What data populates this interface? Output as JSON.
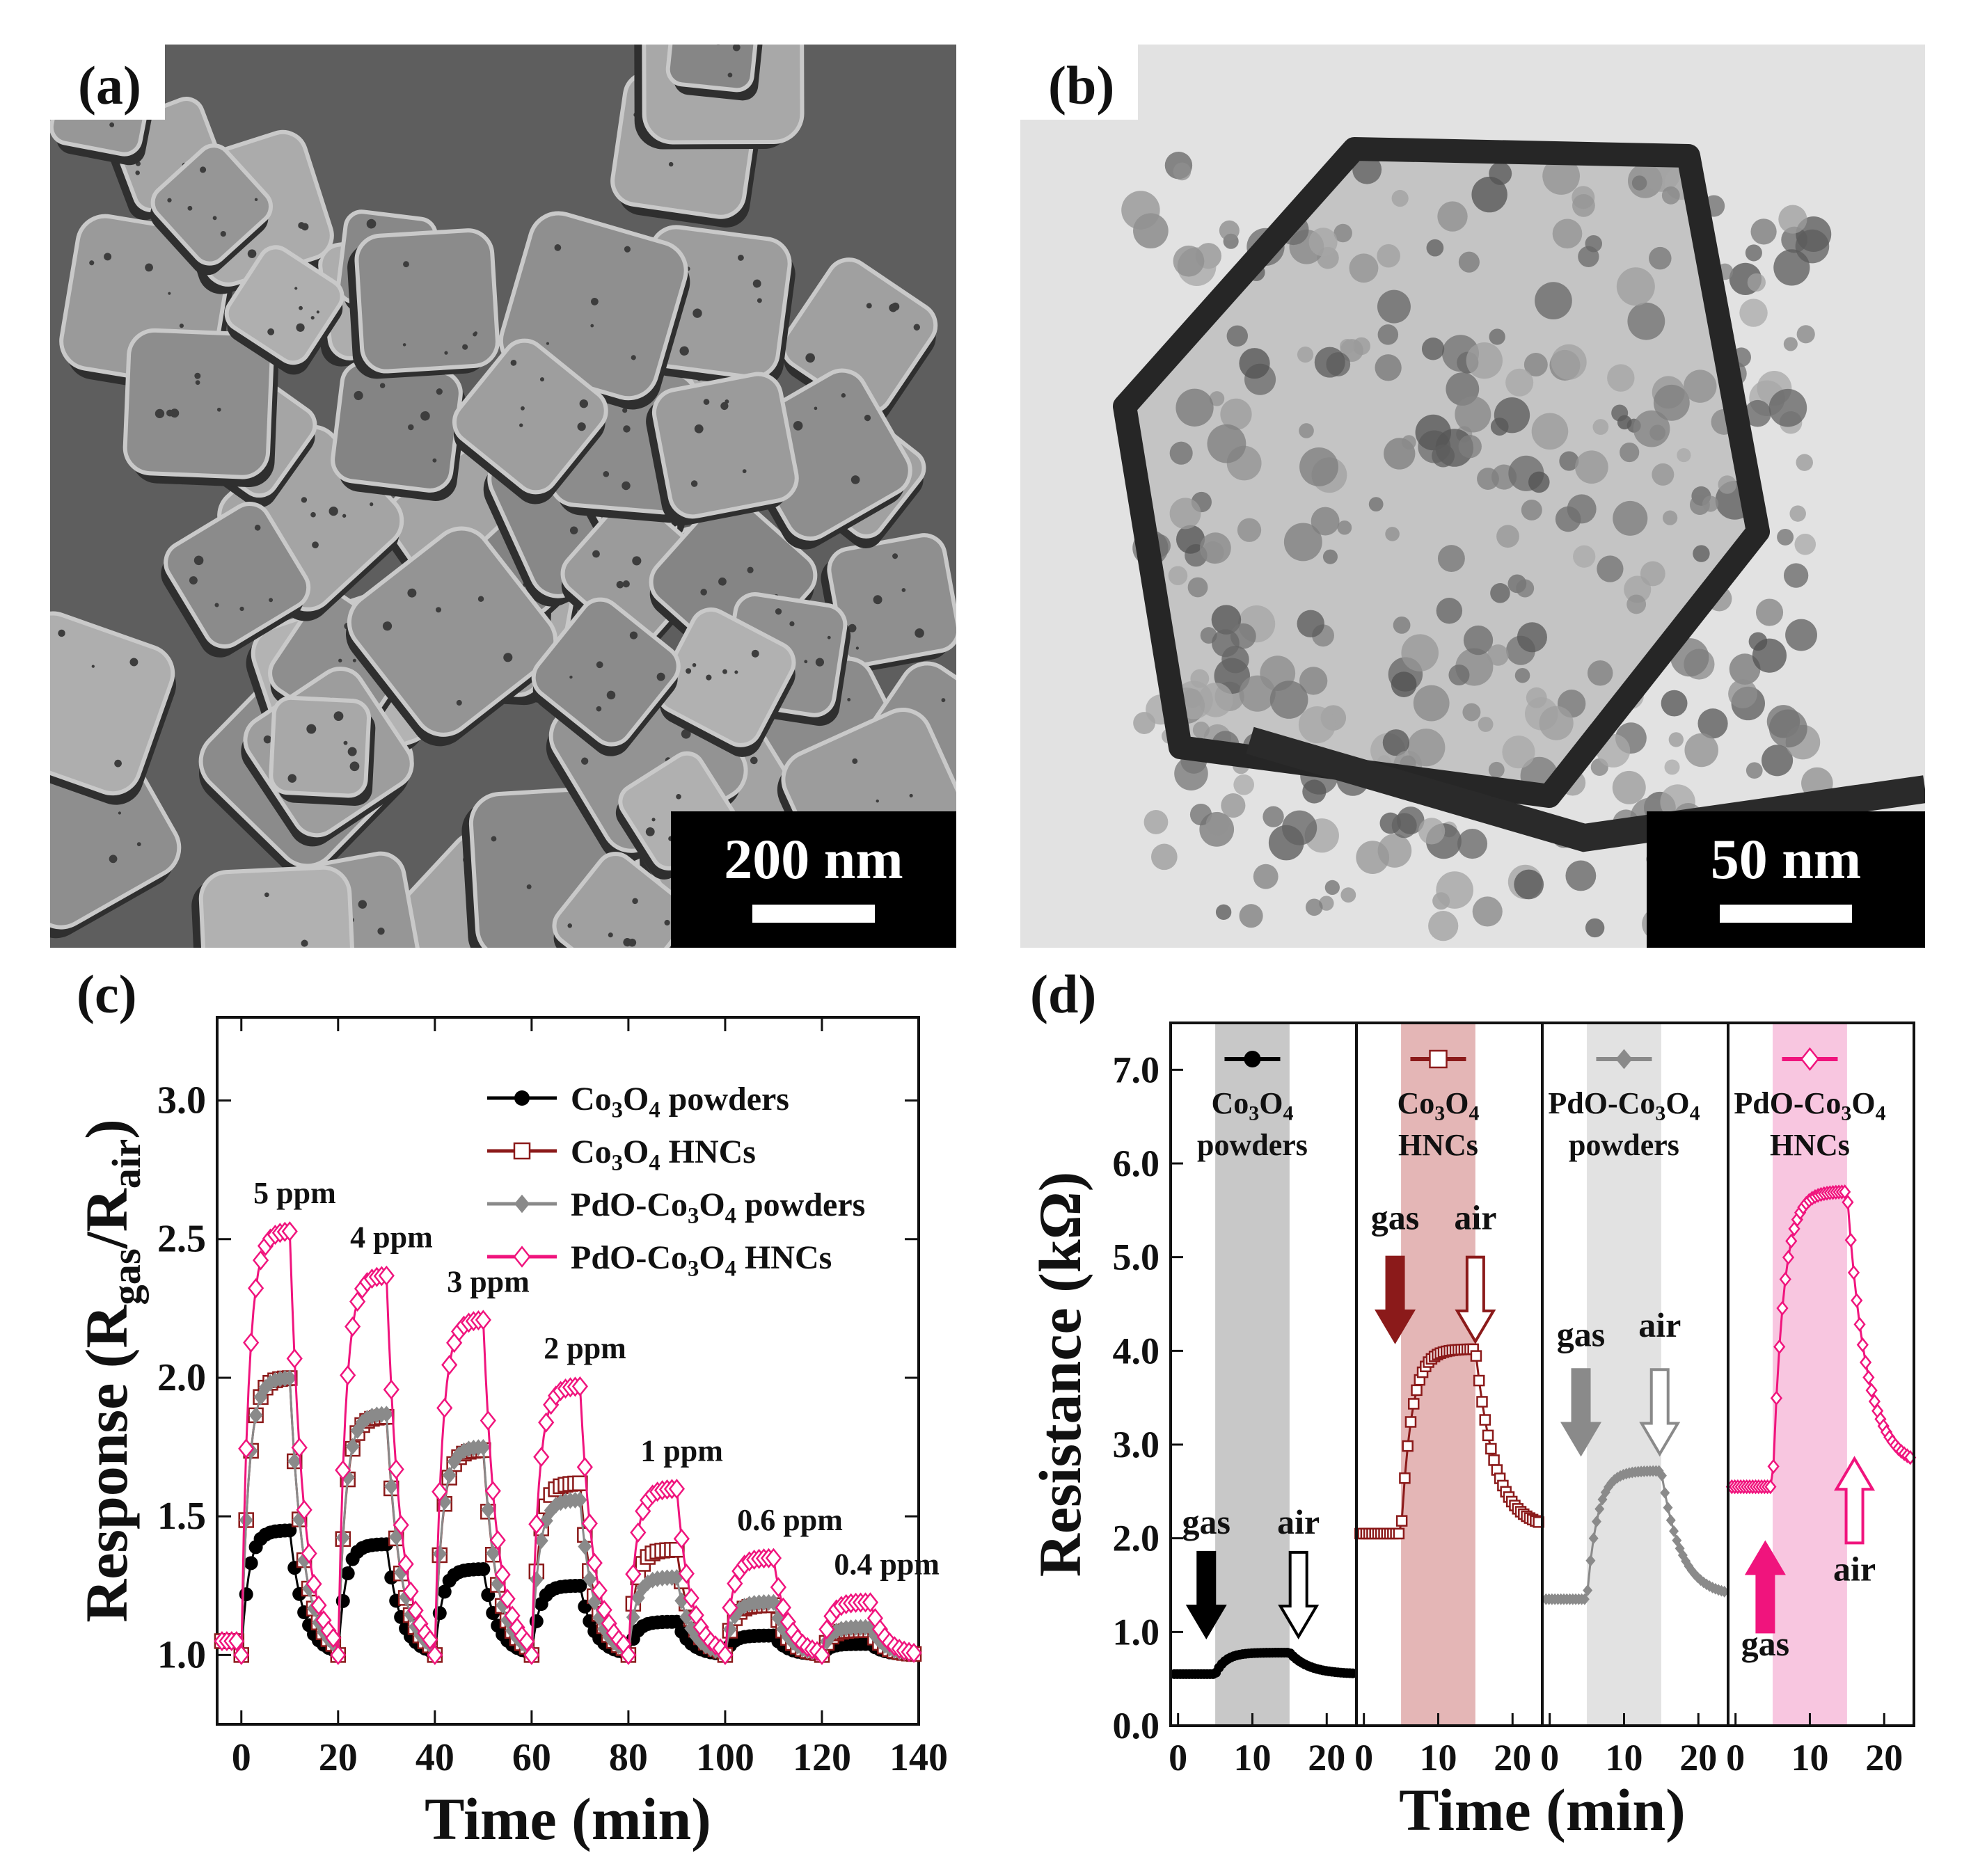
{
  "panels": {
    "a": {
      "label": "(a)",
      "scale_bar": "200 nm"
    },
    "b": {
      "label": "(b)",
      "scale_bar": "50 nm"
    },
    "c": {
      "label": "(c)"
    },
    "d": {
      "label": "(d)"
    }
  },
  "chart_data": [
    {
      "type": "line",
      "panel": "c",
      "xlabel": "Time (min)",
      "ylabel_base": "Response (R",
      "ylabel_sub1": "gas",
      "ylabel_mid": "/R",
      "ylabel_sub2": "air",
      "ylabel_end": ")",
      "xlim": [
        -5,
        140
      ],
      "ylim": [
        0.75,
        3.3
      ],
      "x_ticks": [
        0,
        20,
        40,
        60,
        80,
        100,
        120,
        140
      ],
      "y_ticks": [
        1.0,
        1.5,
        2.0,
        2.5,
        3.0
      ],
      "pulses": [
        {
          "start": 0,
          "end": 10,
          "label": "5 ppm"
        },
        {
          "start": 20,
          "end": 30,
          "label": "4 ppm"
        },
        {
          "start": 40,
          "end": 50,
          "label": "3 ppm"
        },
        {
          "start": 60,
          "end": 70,
          "label": "2 ppm"
        },
        {
          "start": 80,
          "end": 90,
          "label": "1 ppm"
        },
        {
          "start": 100,
          "end": 110,
          "label": "0.6 ppm"
        },
        {
          "start": 120,
          "end": 130,
          "label": "0.4 ppm"
        }
      ],
      "series": [
        {
          "name_base": "Co",
          "name_s1": "3",
          "name_mid": "O",
          "name_s2": "4",
          "name_end": " powders",
          "prefix": "",
          "color": "#000000",
          "marker": "filled-circle",
          "peaks": [
            1.45,
            1.4,
            1.31,
            1.25,
            1.12,
            1.07,
            1.04
          ],
          "rise": 0.15,
          "decay": 0.28
        },
        {
          "name_base": "Co",
          "name_s1": "3",
          "name_mid": "O",
          "name_s2": "4",
          "name_end": " HNCs",
          "prefix": "",
          "color": "#8b1a1a",
          "marker": "open-square",
          "peaks": [
            2.0,
            1.86,
            1.74,
            1.62,
            1.38,
            1.18,
            1.09
          ],
          "rise": 0.15,
          "decay": 0.28
        },
        {
          "name_base": "Co",
          "name_s1": "3",
          "name_mid": "O",
          "name_s2": "4",
          "name_end": " powders",
          "prefix": "PdO-",
          "color": "#8a8a8a",
          "marker": "filled-diamond",
          "peaks": [
            2.0,
            1.87,
            1.75,
            1.56,
            1.28,
            1.19,
            1.1
          ],
          "rise": 0.15,
          "decay": 0.28
        },
        {
          "name_base": "Co",
          "name_s1": "3",
          "name_mid": "O",
          "name_s2": "4",
          "name_end": " HNCs",
          "prefix": "PdO-",
          "color": "#f0147d",
          "marker": "open-diamond",
          "peaks": [
            2.53,
            2.37,
            2.21,
            1.97,
            1.6,
            1.35,
            1.19
          ],
          "rise": 0.15,
          "decay": 0.28
        }
      ]
    },
    {
      "type": "line",
      "panel": "d",
      "xlabel": "Time (min)",
      "ylabel": "Resistance (kΩ)",
      "ylim": [
        0,
        7.5
      ],
      "y_ticks": [
        0.0,
        1.0,
        2.0,
        3.0,
        4.0,
        5.0,
        6.0,
        7.0
      ],
      "x_ticks": [
        0,
        10,
        20
      ],
      "xlim_each": [
        -1,
        24
      ],
      "gas_window": [
        5,
        15
      ],
      "subplots": [
        {
          "line1": "Co3O4",
          "line2": "powders",
          "l1_base": "Co",
          "l1_s1": "3",
          "l1_mid": "O",
          "l1_s2": "4",
          "l1_prefix": "",
          "color": "#000000",
          "band": "#c8c8c8",
          "marker": "filled-circle",
          "base": 0.55,
          "peak": 0.78,
          "end": 0.55,
          "gas_text": "gas",
          "air_text": "air",
          "arrow_gas": {
            "x": 3.8,
            "y_tip": 0.95,
            "y_top": 1.85,
            "dir": "down",
            "style": "filled"
          },
          "arrow_air": {
            "x": 16.2,
            "y_tip": 0.95,
            "y_top": 1.85,
            "dir": "down",
            "style": "open"
          },
          "gas_label_y": 2.05,
          "air_label_y": 2.05
        },
        {
          "line1": "Co3O4",
          "line2": "HNCs",
          "l1_base": "Co",
          "l1_s1": "3",
          "l1_mid": "O",
          "l1_s2": "4",
          "l1_prefix": "",
          "color": "#8b1a1a",
          "band": "#e4b6b6",
          "marker": "open-square",
          "base": 2.05,
          "peak": 4.02,
          "end": 2.1,
          "gas_text": "gas",
          "air_text": "air",
          "arrow_gas": {
            "x": 4.2,
            "y_tip": 4.1,
            "y_top": 5.0,
            "dir": "down",
            "style": "filled"
          },
          "arrow_air": {
            "x": 15.0,
            "y_tip": 4.1,
            "y_top": 5.0,
            "dir": "down",
            "style": "open"
          },
          "gas_label_y": 5.3,
          "air_label_y": 5.3
        },
        {
          "line1": "PdO-Co3O4",
          "line2": "powders",
          "l1_base": "Co",
          "l1_s1": "3",
          "l1_mid": "O",
          "l1_s2": "4",
          "l1_prefix": "PdO-",
          "color": "#8a8a8a",
          "band": "#e2e2e2",
          "marker": "filled-diamond",
          "base": 1.35,
          "peak": 2.72,
          "end": 1.38,
          "gas_text": "gas",
          "air_text": "air",
          "arrow_gas": {
            "x": 4.2,
            "y_tip": 2.9,
            "y_top": 3.8,
            "dir": "down",
            "style": "filled"
          },
          "arrow_air": {
            "x": 14.8,
            "y_tip": 2.9,
            "y_top": 3.8,
            "dir": "down",
            "style": "open"
          },
          "gas_label_y": 4.05,
          "air_label_y": 4.15
        },
        {
          "line1": "PdO-Co3O4",
          "line2": "HNCs",
          "l1_base": "Co",
          "l1_s1": "3",
          "l1_mid": "O",
          "l1_s2": "4",
          "l1_prefix": "PdO-",
          "color": "#f0147d",
          "band": "#f8c6e0",
          "marker": "open-diamond",
          "base": 2.55,
          "peak": 5.7,
          "end": 2.75,
          "gas_text": "gas",
          "air_text": "air",
          "arrow_gas": {
            "x": 4.0,
            "y_tip": 1.95,
            "y_top": 1.0,
            "dir": "up",
            "style": "filled"
          },
          "arrow_air": {
            "x": 16.0,
            "y_tip": 2.85,
            "y_top": 1.95,
            "dir": "up",
            "style": "open"
          },
          "gas_label_y": 0.75,
          "air_label_y": 1.55
        }
      ]
    }
  ]
}
